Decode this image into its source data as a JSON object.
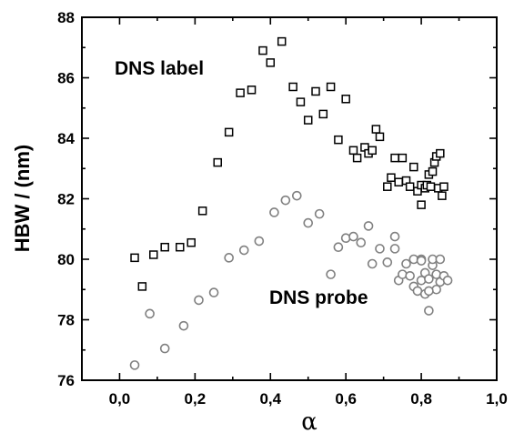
{
  "chart_data": {
    "type": "scatter",
    "xlabel": "α",
    "ylabel": "HBW / (nm)",
    "xlim": [
      -0.1,
      1.0
    ],
    "ylim": [
      76,
      88
    ],
    "xticks": [
      "0,0",
      "0,2",
      "0,4",
      "0,6",
      "0,8",
      "1,0"
    ],
    "yticks": [
      "76",
      "78",
      "80",
      "82",
      "84",
      "86",
      "88"
    ],
    "grid": false,
    "annotations": [
      "DNS label",
      "DNS probe"
    ],
    "series": [
      {
        "marker": "square",
        "color": "#000000",
        "label": "DNS label",
        "points": [
          [
            0.04,
            80.05
          ],
          [
            0.06,
            79.1
          ],
          [
            0.09,
            80.15
          ],
          [
            0.12,
            80.4
          ],
          [
            0.16,
            80.4
          ],
          [
            0.19,
            80.55
          ],
          [
            0.22,
            81.6
          ],
          [
            0.26,
            83.2
          ],
          [
            0.29,
            84.2
          ],
          [
            0.32,
            85.5
          ],
          [
            0.35,
            85.6
          ],
          [
            0.38,
            86.9
          ],
          [
            0.4,
            86.5
          ],
          [
            0.43,
            87.2
          ],
          [
            0.46,
            85.7
          ],
          [
            0.48,
            85.2
          ],
          [
            0.5,
            84.6
          ],
          [
            0.52,
            85.55
          ],
          [
            0.54,
            84.8
          ],
          [
            0.56,
            85.7
          ],
          [
            0.58,
            83.95
          ],
          [
            0.6,
            85.3
          ],
          [
            0.62,
            83.6
          ],
          [
            0.63,
            83.35
          ],
          [
            0.65,
            83.7
          ],
          [
            0.66,
            83.5
          ],
          [
            0.67,
            83.6
          ],
          [
            0.68,
            84.3
          ],
          [
            0.69,
            84.05
          ],
          [
            0.71,
            82.4
          ],
          [
            0.72,
            82.7
          ],
          [
            0.73,
            83.35
          ],
          [
            0.74,
            82.55
          ],
          [
            0.75,
            83.35
          ],
          [
            0.76,
            82.6
          ],
          [
            0.77,
            82.4
          ],
          [
            0.78,
            83.05
          ],
          [
            0.79,
            82.25
          ],
          [
            0.8,
            82.45
          ],
          [
            0.8,
            81.8
          ],
          [
            0.81,
            82.35
          ],
          [
            0.815,
            82.45
          ],
          [
            0.82,
            82.8
          ],
          [
            0.825,
            82.4
          ],
          [
            0.83,
            82.9
          ],
          [
            0.835,
            83.2
          ],
          [
            0.84,
            83.4
          ],
          [
            0.845,
            82.35
          ],
          [
            0.85,
            83.5
          ],
          [
            0.855,
            82.1
          ],
          [
            0.86,
            82.4
          ]
        ]
      },
      {
        "marker": "circle",
        "color": "#808080",
        "label": "DNS probe",
        "points": [
          [
            0.04,
            76.5
          ],
          [
            0.08,
            78.2
          ],
          [
            0.12,
            77.05
          ],
          [
            0.17,
            77.8
          ],
          [
            0.21,
            78.65
          ],
          [
            0.25,
            78.9
          ],
          [
            0.29,
            80.05
          ],
          [
            0.33,
            80.3
          ],
          [
            0.37,
            80.6
          ],
          [
            0.41,
            81.55
          ],
          [
            0.44,
            81.95
          ],
          [
            0.47,
            82.1
          ],
          [
            0.5,
            81.2
          ],
          [
            0.53,
            81.5
          ],
          [
            0.56,
            79.5
          ],
          [
            0.58,
            80.4
          ],
          [
            0.6,
            80.7
          ],
          [
            0.62,
            80.75
          ],
          [
            0.64,
            80.55
          ],
          [
            0.66,
            81.1
          ],
          [
            0.67,
            79.85
          ],
          [
            0.69,
            80.35
          ],
          [
            0.71,
            79.9
          ],
          [
            0.73,
            80.35
          ],
          [
            0.73,
            80.75
          ],
          [
            0.74,
            79.3
          ],
          [
            0.75,
            79.5
          ],
          [
            0.76,
            79.85
          ],
          [
            0.77,
            79.45
          ],
          [
            0.78,
            80.0
          ],
          [
            0.78,
            79.1
          ],
          [
            0.79,
            78.95
          ],
          [
            0.8,
            79.3
          ],
          [
            0.8,
            80.0
          ],
          [
            0.81,
            78.85
          ],
          [
            0.81,
            79.55
          ],
          [
            0.82,
            79.35
          ],
          [
            0.82,
            78.3
          ],
          [
            0.83,
            79.8
          ],
          [
            0.83,
            80.0
          ],
          [
            0.84,
            79.0
          ],
          [
            0.84,
            79.5
          ],
          [
            0.85,
            79.25
          ],
          [
            0.85,
            80.0
          ],
          [
            0.86,
            79.45
          ],
          [
            0.87,
            79.3
          ],
          [
            0.8,
            79.95
          ],
          [
            0.82,
            78.95
          ]
        ]
      }
    ]
  }
}
